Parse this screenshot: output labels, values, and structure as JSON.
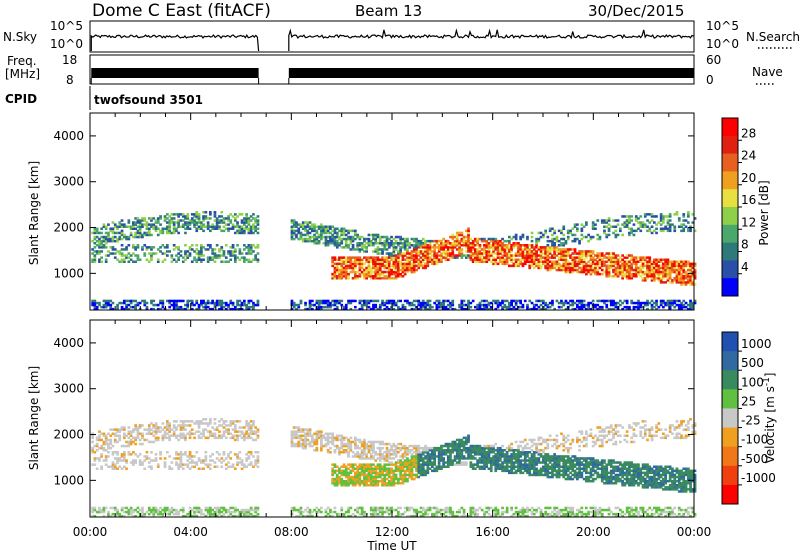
{
  "header": {
    "title": "Dome C East (fitACF)",
    "beam": "Beam 13",
    "date": "30/Dec/2015"
  },
  "top_panels": {
    "nsky_label": "N.Sky",
    "nsky_ticks": [
      "10^5",
      "10^0"
    ],
    "nsearch_label": "N.Search",
    "nsearch_ticks": [
      "10^5",
      "10^0"
    ],
    "freq_label_line1": "Freq.",
    "freq_label_line2": "[MHz]",
    "freq_ticks": [
      "18",
      "8"
    ],
    "nave_label": "Nave",
    "nave_ticks": [
      "60",
      "0"
    ],
    "cpid_label": "CPID",
    "cpid_value": "twofsound 3501"
  },
  "chart_data": [
    {
      "type": "heatmap",
      "name": "power",
      "xlabel": "",
      "ylabel": "Slant Range [km]",
      "xlim": [
        0,
        24
      ],
      "ylim": [
        200,
        4500
      ],
      "yticks": [
        "1000",
        "2000",
        "3000",
        "4000"
      ],
      "colorbar_label": "Power [dB]",
      "colorbar_ticks": [
        "4",
        "8",
        "12",
        "16",
        "20",
        "24",
        "28"
      ],
      "data_gap_hours": [
        6.7,
        7.9
      ],
      "colors": [
        "#0000ff",
        "#2a4fa8",
        "#2e7a7a",
        "#4aa86a",
        "#8fd04a",
        "#e8e040",
        "#f0a020",
        "#e86020",
        "#e02010",
        "#ff0000"
      ]
    },
    {
      "type": "heatmap",
      "name": "velocity",
      "xlabel": "Time UT",
      "ylabel": "Slant Range [km]",
      "xlim": [
        0,
        24
      ],
      "ylim": [
        200,
        4500
      ],
      "xticks": [
        "00:00",
        "04:00",
        "08:00",
        "12:00",
        "16:00",
        "20:00",
        "00:00"
      ],
      "yticks": [
        "1000",
        "2000",
        "3000",
        "4000"
      ],
      "colorbar_label": "Velocity [m s",
      "colorbar_unit_exp": "-1",
      "colorbar_ticks": [
        "1000",
        "500",
        "100",
        "25",
        "-25",
        "-100",
        "-500",
        "-1000"
      ],
      "data_gap_hours": [
        6.7,
        7.9
      ],
      "colors": [
        "#2050b0",
        "#306aa0",
        "#3a8a60",
        "#60c040",
        "#c8c8c8",
        "#f0a020",
        "#f07818",
        "#f04010",
        "#ff0000"
      ]
    }
  ]
}
